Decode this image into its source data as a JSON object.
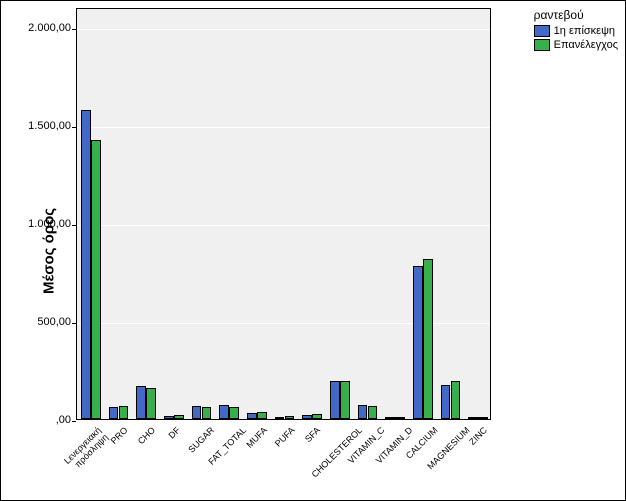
{
  "chart": {
    "type": "bar",
    "y_axis_label": "Μέσος όρος",
    "ylim": [
      0,
      2100
    ],
    "yticks": [
      0,
      500,
      1000,
      1500,
      2000
    ],
    "ytick_labels": [
      ",00",
      "500,00",
      "1.000,00",
      "1.500,00",
      "2.000,00"
    ],
    "background_color": "#f0f0f0",
    "grid_color": "#ffffff",
    "categories": [
      "Lενεργειακή\\nπρόσληψη",
      "PRO",
      "CHO",
      "DF",
      "SUGAR",
      "FAT_TOTAL",
      "MUFA",
      "PUFA",
      "SFA",
      "CHOLESTEROL",
      "VITAMIN_C",
      "VITAMIN_D",
      "CALCIUM",
      "MAGNESIUM",
      "ZINC"
    ],
    "series": [
      {
        "name": "1η επίσκεψη",
        "color": "#4169c5",
        "values": [
          1575,
          62,
          170,
          15,
          65,
          72,
          32,
          12,
          22,
          195,
          72,
          5,
          780,
          175,
          8
        ]
      },
      {
        "name": "Επανέλεγχος",
        "color": "#37af4a",
        "values": [
          1420,
          68,
          158,
          18,
          60,
          62,
          35,
          14,
          26,
          192,
          68,
          5,
          815,
          195,
          9
        ]
      }
    ],
    "legend_title": "ραντεβού",
    "bar_group_width": 0.72,
    "font_family": "Arial",
    "label_fontsize": 15,
    "tick_fontsize_y": 11,
    "tick_fontsize_x": 9
  }
}
